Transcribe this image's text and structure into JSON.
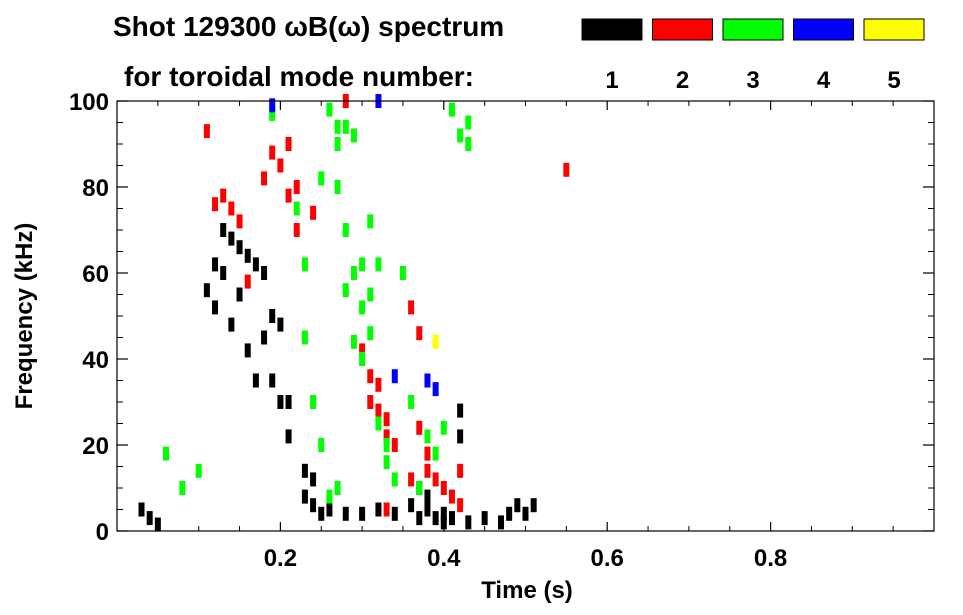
{
  "chart_data": {
    "type": "scatter",
    "title_line1": "Shot 129300 ωB(ω) spectrum",
    "title_line2": "for toroidal mode number:",
    "xlabel": "Time (s)",
    "ylabel": "Frequency (kHz)",
    "xlim": [
      0.0,
      1.0
    ],
    "ylim": [
      0,
      100
    ],
    "xticks": [
      {
        "value": 0.2,
        "label": "0.2"
      },
      {
        "value": 0.4,
        "label": "0.4"
      },
      {
        "value": 0.6,
        "label": "0.6"
      },
      {
        "value": 0.8,
        "label": "0.8"
      }
    ],
    "yticks": [
      {
        "value": 0,
        "label": "0"
      },
      {
        "value": 20,
        "label": "20"
      },
      {
        "value": 40,
        "label": "40"
      },
      {
        "value": 60,
        "label": "60"
      },
      {
        "value": 80,
        "label": "80"
      },
      {
        "value": 100,
        "label": "100"
      }
    ],
    "grid": false,
    "legend_placement": "top-right",
    "series": [
      {
        "name": "1",
        "color": "#000000",
        "points": [
          [
            0.03,
            5
          ],
          [
            0.04,
            3
          ],
          [
            0.05,
            1.5
          ],
          [
            0.11,
            56
          ],
          [
            0.12,
            62
          ],
          [
            0.12,
            52
          ],
          [
            0.13,
            70
          ],
          [
            0.13,
            60
          ],
          [
            0.14,
            68
          ],
          [
            0.14,
            48
          ],
          [
            0.15,
            66
          ],
          [
            0.15,
            55
          ],
          [
            0.16,
            64
          ],
          [
            0.16,
            42
          ],
          [
            0.17,
            62
          ],
          [
            0.17,
            35
          ],
          [
            0.18,
            60
          ],
          [
            0.18,
            45
          ],
          [
            0.19,
            50
          ],
          [
            0.19,
            35
          ],
          [
            0.2,
            48
          ],
          [
            0.2,
            30
          ],
          [
            0.21,
            30
          ],
          [
            0.21,
            22
          ],
          [
            0.23,
            14
          ],
          [
            0.23,
            8
          ],
          [
            0.24,
            6
          ],
          [
            0.24,
            12
          ],
          [
            0.25,
            4
          ],
          [
            0.26,
            5
          ],
          [
            0.28,
            4
          ],
          [
            0.3,
            4
          ],
          [
            0.32,
            5
          ],
          [
            0.34,
            4
          ],
          [
            0.36,
            6
          ],
          [
            0.37,
            10
          ],
          [
            0.37,
            3
          ],
          [
            0.38,
            8
          ],
          [
            0.38,
            5
          ],
          [
            0.39,
            3
          ],
          [
            0.4,
            4
          ],
          [
            0.4,
            2
          ],
          [
            0.41,
            3
          ],
          [
            0.42,
            28
          ],
          [
            0.42,
            22
          ],
          [
            0.43,
            2
          ],
          [
            0.45,
            3
          ],
          [
            0.47,
            2
          ],
          [
            0.48,
            4
          ],
          [
            0.49,
            6
          ],
          [
            0.5,
            4
          ],
          [
            0.51,
            6
          ]
        ]
      },
      {
        "name": "2",
        "color": "#ff0000",
        "points": [
          [
            0.11,
            93
          ],
          [
            0.12,
            76
          ],
          [
            0.13,
            78
          ],
          [
            0.14,
            75
          ],
          [
            0.15,
            72
          ],
          [
            0.16,
            58
          ],
          [
            0.18,
            82
          ],
          [
            0.19,
            88
          ],
          [
            0.2,
            85
          ],
          [
            0.21,
            90
          ],
          [
            0.21,
            78
          ],
          [
            0.22,
            70
          ],
          [
            0.22,
            80
          ],
          [
            0.24,
            74
          ],
          [
            0.28,
            100
          ],
          [
            0.3,
            42
          ],
          [
            0.31,
            36
          ],
          [
            0.31,
            30
          ],
          [
            0.32,
            34
          ],
          [
            0.32,
            28
          ],
          [
            0.33,
            26
          ],
          [
            0.33,
            22
          ],
          [
            0.34,
            20
          ],
          [
            0.36,
            52
          ],
          [
            0.37,
            46
          ],
          [
            0.37,
            24
          ],
          [
            0.38,
            18
          ],
          [
            0.38,
            14
          ],
          [
            0.39,
            12
          ],
          [
            0.4,
            10
          ],
          [
            0.41,
            8
          ],
          [
            0.42,
            6
          ],
          [
            0.42,
            14
          ],
          [
            0.36,
            12
          ],
          [
            0.55,
            84
          ],
          [
            0.33,
            5
          ]
        ]
      },
      {
        "name": "3",
        "color": "#00ff00",
        "points": [
          [
            0.06,
            18
          ],
          [
            0.08,
            10
          ],
          [
            0.1,
            14
          ],
          [
            0.19,
            97
          ],
          [
            0.22,
            75
          ],
          [
            0.23,
            62
          ],
          [
            0.23,
            45
          ],
          [
            0.24,
            30
          ],
          [
            0.25,
            82
          ],
          [
            0.25,
            20
          ],
          [
            0.26,
            98
          ],
          [
            0.27,
            94
          ],
          [
            0.27,
            90
          ],
          [
            0.27,
            80
          ],
          [
            0.28,
            94
          ],
          [
            0.28,
            70
          ],
          [
            0.28,
            56
          ],
          [
            0.29,
            92
          ],
          [
            0.29,
            60
          ],
          [
            0.29,
            44
          ],
          [
            0.3,
            62
          ],
          [
            0.3,
            52
          ],
          [
            0.3,
            40
          ],
          [
            0.31,
            72
          ],
          [
            0.31,
            55
          ],
          [
            0.31,
            46
          ],
          [
            0.32,
            62
          ],
          [
            0.32,
            25
          ],
          [
            0.33,
            20
          ],
          [
            0.33,
            16
          ],
          [
            0.34,
            12
          ],
          [
            0.35,
            60
          ],
          [
            0.36,
            30
          ],
          [
            0.37,
            10
          ],
          [
            0.38,
            22
          ],
          [
            0.39,
            18
          ],
          [
            0.4,
            24
          ],
          [
            0.41,
            98
          ],
          [
            0.42,
            92
          ],
          [
            0.43,
            90
          ],
          [
            0.43,
            95
          ],
          [
            0.26,
            8
          ],
          [
            0.27,
            10
          ]
        ]
      },
      {
        "name": "4",
        "color": "#0000ff",
        "points": [
          [
            0.19,
            99
          ],
          [
            0.32,
            100
          ],
          [
            0.34,
            36
          ],
          [
            0.38,
            35
          ],
          [
            0.39,
            33
          ]
        ]
      },
      {
        "name": "5",
        "color": "#ffff00",
        "points": [
          [
            0.39,
            44
          ]
        ]
      }
    ]
  }
}
